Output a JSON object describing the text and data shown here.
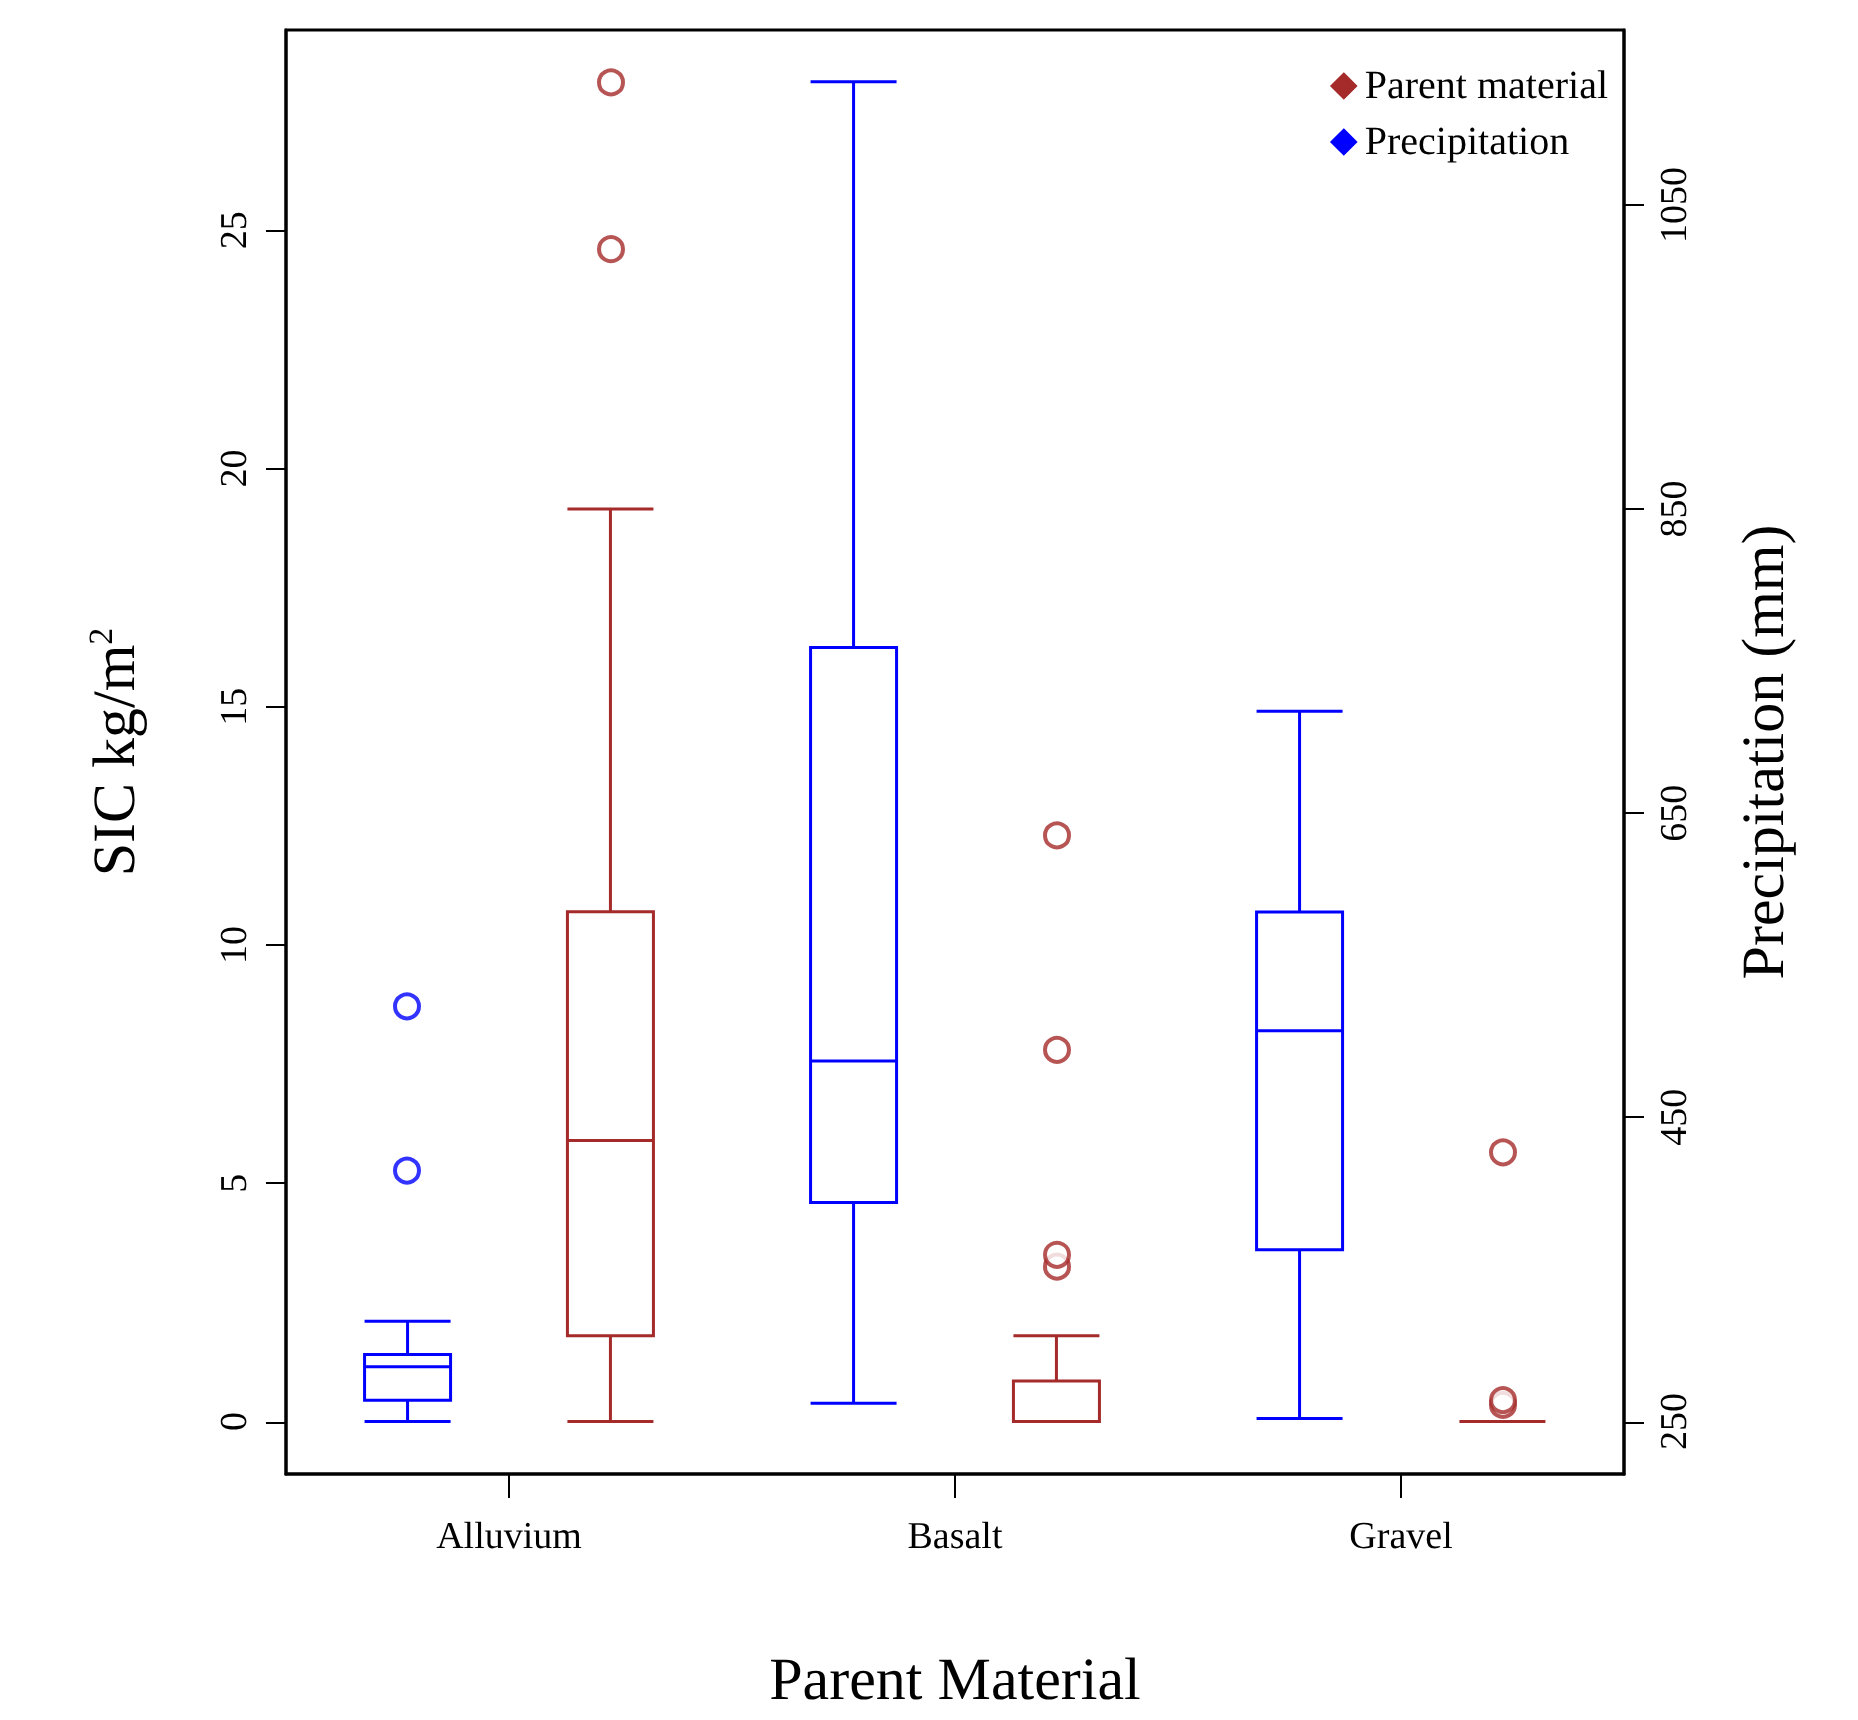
{
  "chart_data": {
    "type": "box",
    "xlabel": "Parent Material",
    "ylabel": "SIC kg/m$^{2}$",
    "y2label": "Precipitation (mm)",
    "categories": [
      "Alluvium",
      "Basalt",
      "Gravel"
    ],
    "series": [
      {
        "name": "Precipitation",
        "color": "#0000ff",
        "axis": "y2",
        "boxes": [
          {
            "low": 250,
            "q1": 264,
            "median": 286,
            "q3": 294,
            "high": 316,
            "outliers": [
              415,
              523
            ]
          },
          {
            "low": 262,
            "q1": 394,
            "median": 487,
            "q3": 759,
            "high": 1131
          },
          {
            "low": 252,
            "q1": 363,
            "median": 507,
            "q3": 585,
            "high": 717
          }
        ]
      },
      {
        "name": "Parent material",
        "color": "#a52a2a",
        "boxes": [
          {
            "low": 0,
            "q1": 1.8,
            "median": 5.9,
            "q3": 10.7,
            "high": 19.15,
            "outliers": [
              24.6,
              28.1
            ]
          },
          {
            "low": 0,
            "q1": 0,
            "median": 0,
            "q3": 0.85,
            "high": 1.8,
            "outliers": [
              3.25,
              3.5,
              7.8,
              12.3
            ]
          },
          {
            "low": 0,
            "q1": 0,
            "median": 0,
            "q3": 0,
            "high": 0,
            "outliers": [
              0.35,
              0.45,
              5.65
            ]
          }
        ]
      }
    ],
    "ylim": [
      -1.1,
      29.2
    ],
    "yticks": [
      0,
      5,
      10,
      15,
      20,
      25
    ],
    "y2lim": [
      215.5,
      1165
    ],
    "y2ticks": [
      250,
      450,
      650,
      850,
      1050
    ],
    "legend": "top right",
    "marker": "diamond"
  }
}
